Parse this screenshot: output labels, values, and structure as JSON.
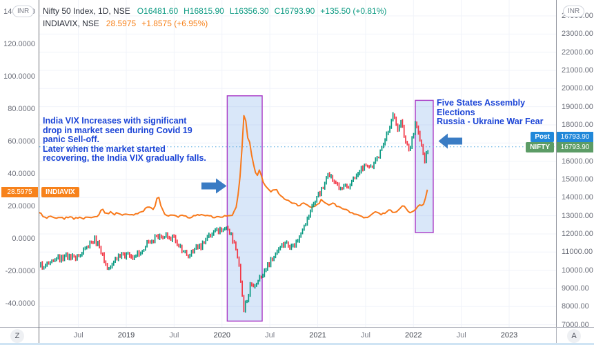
{
  "colors": {
    "nifty_up": "#089981",
    "nifty_down": "#f23645",
    "vix_line": "#f8791b",
    "vix_badge": "#f7821b",
    "grid": "#f0f3fa",
    "dotted_price_line": "#4da6e0",
    "region_fill": "#78aaeb",
    "region_border": "#a93ac6",
    "arrow": "#3a7cc4",
    "post_badge": "#2188d9",
    "nifty_badge": "#5c9c66",
    "annotation_text": "#1b44d6"
  },
  "legend": {
    "nifty": {
      "title": "Nifty 50 Index, 1D, NSE",
      "open": "O16481.60",
      "high": "H16815.90",
      "low": "L16356.30",
      "close": "C16793.90",
      "change": "+135.50 (+0.81%)"
    },
    "indiavix": {
      "title": "INDIAVIX, NSE",
      "value": "28.5975",
      "change": "+1.8575 (+6.95%)"
    }
  },
  "axes": {
    "left_currency_button": "INR",
    "right_currency_button": "INR",
    "left_ticks": [
      {
        "label": "140.0000",
        "value": 140
      },
      {
        "label": "120.0000",
        "value": 120
      },
      {
        "label": "100.0000",
        "value": 100
      },
      {
        "label": "80.0000",
        "value": 80
      },
      {
        "label": "60.0000",
        "value": 60
      },
      {
        "label": "40.0000",
        "value": 40
      },
      {
        "label": "20.0000",
        "value": 20
      },
      {
        "label": "0.0000",
        "value": 0
      },
      {
        "label": "-20.0000",
        "value": -20
      },
      {
        "label": "-40.0000",
        "value": -40
      }
    ],
    "right_ticks": [
      {
        "label": "24000.00",
        "value": 24000
      },
      {
        "label": "23000.00",
        "value": 23000
      },
      {
        "label": "22000.00",
        "value": 22000
      },
      {
        "label": "21000.00",
        "value": 21000
      },
      {
        "label": "20000.00",
        "value": 20000
      },
      {
        "label": "19000.00",
        "value": 19000
      },
      {
        "label": "18000.00",
        "value": 18000
      },
      {
        "label": "17000.00",
        "value": 17000
      },
      {
        "label": "16000.00",
        "value": 16000
      },
      {
        "label": "15000.00",
        "value": 15000
      },
      {
        "label": "14000.00",
        "value": 14000
      },
      {
        "label": "13000.00",
        "value": 13000
      },
      {
        "label": "12000.00",
        "value": 12000
      },
      {
        "label": "11000.00",
        "value": 11000
      },
      {
        "label": "10000.00",
        "value": 10000
      },
      {
        "label": "9000.00",
        "value": 9000
      },
      {
        "label": "8000.00",
        "value": 8000
      },
      {
        "label": "7000.00",
        "value": 7000
      }
    ],
    "time_ticks": [
      {
        "label": "Jul",
        "t": 2018.5,
        "major": false
      },
      {
        "label": "2019",
        "t": 2019,
        "major": true
      },
      {
        "label": "Jul",
        "t": 2019.5,
        "major": false
      },
      {
        "label": "2020",
        "t": 2020,
        "major": true
      },
      {
        "label": "Jul",
        "t": 2020.5,
        "major": false
      },
      {
        "label": "2021",
        "t": 2021,
        "major": true
      },
      {
        "label": "Jul",
        "t": 2021.5,
        "major": false
      },
      {
        "label": "2022",
        "t": 2022,
        "major": true
      },
      {
        "label": "Jul",
        "t": 2022.5,
        "major": false
      },
      {
        "label": "2023",
        "t": 2023,
        "major": true
      }
    ]
  },
  "price_labels": {
    "vix_axis_value": "28.5975",
    "vix_series_label": "INDIAVIX",
    "post_label": "Post",
    "post_value": "16793.90",
    "nifty_label": "NIFTY",
    "nifty_value": "16793.90"
  },
  "annotations": {
    "covid": [
      "India VIX Increases with significant",
      "drop in market seen during Covid 19",
      "panic Sell-off.",
      "Later when the market started",
      "recovering, the India VIX gradually falls."
    ],
    "elections": [
      "Five States Assembly Elections",
      "Russia - Ukraine War Fear"
    ]
  },
  "buttons": {
    "zoom_reset": "Z",
    "auto_scale": "A"
  },
  "chart_data": {
    "type": "mixed",
    "grid": true,
    "x_axis": {
      "unit": "year",
      "range": [
        2018.092,
        2023.49
      ]
    },
    "right_axis": {
      "label": "Nifty 50 Index (INR)",
      "range": [
        6871,
        24873
      ]
    },
    "left_axis": {
      "label": "India VIX",
      "range": [
        -54.55,
        147.45
      ]
    },
    "price_line": {
      "axis": "right",
      "value": 16793.9
    },
    "regions": [
      {
        "label": "Covid 19 panic sell-off",
        "t": [
          2020.055,
          2020.42
        ],
        "v": [
          7200,
          19600
        ]
      },
      {
        "label": "Five States Assembly Elections / Russia - Ukraine War Fear",
        "t": [
          2022.02,
          2022.207
        ],
        "v": [
          12070,
          19350
        ]
      }
    ],
    "series": [
      {
        "name": "Nifty 50 Index",
        "type": "candlestick",
        "axis": "right",
        "last": 16793.9,
        "points": [
          [
            2018.09,
            10350
          ],
          [
            2018.13,
            10150
          ],
          [
            2018.17,
            10450
          ],
          [
            2018.22,
            10600
          ],
          [
            2018.28,
            10720
          ],
          [
            2018.33,
            10620
          ],
          [
            2018.38,
            10780
          ],
          [
            2018.44,
            10700
          ],
          [
            2018.5,
            10750
          ],
          [
            2018.56,
            11050
          ],
          [
            2018.62,
            11400
          ],
          [
            2018.67,
            11700
          ],
          [
            2018.71,
            11350
          ],
          [
            2018.74,
            11000
          ],
          [
            2018.78,
            10300
          ],
          [
            2018.81,
            10050
          ],
          [
            2018.85,
            10350
          ],
          [
            2018.89,
            10600
          ],
          [
            2018.93,
            10700
          ],
          [
            2018.97,
            10850
          ],
          [
            2019.02,
            10800
          ],
          [
            2019.06,
            10700
          ],
          [
            2019.1,
            10850
          ],
          [
            2019.15,
            11000
          ],
          [
            2019.2,
            11350
          ],
          [
            2019.25,
            11650
          ],
          [
            2019.3,
            11750
          ],
          [
            2019.35,
            11850
          ],
          [
            2019.42,
            12000
          ],
          [
            2019.47,
            11800
          ],
          [
            2019.52,
            11650
          ],
          [
            2019.57,
            11150
          ],
          [
            2019.62,
            10950
          ],
          [
            2019.66,
            10800
          ],
          [
            2019.7,
            11100
          ],
          [
            2019.74,
            11350
          ],
          [
            2019.78,
            11250
          ],
          [
            2019.82,
            11600
          ],
          [
            2019.86,
            11900
          ],
          [
            2019.91,
            12050
          ],
          [
            2019.96,
            12150
          ],
          [
            2020.0,
            12200
          ],
          [
            2020.04,
            12300
          ],
          [
            2020.08,
            12100
          ],
          [
            2020.12,
            11550
          ],
          [
            2020.15,
            11000
          ],
          [
            2020.18,
            10200
          ],
          [
            2020.21,
            8800
          ],
          [
            2020.23,
            7650
          ],
          [
            2020.25,
            8600
          ],
          [
            2020.27,
            8300
          ],
          [
            2020.29,
            9100
          ],
          [
            2020.32,
            9350
          ],
          [
            2020.34,
            9050
          ],
          [
            2020.37,
            9250
          ],
          [
            2020.4,
            9550
          ],
          [
            2020.44,
            9900
          ],
          [
            2020.48,
            10250
          ],
          [
            2020.52,
            10550
          ],
          [
            2020.56,
            10850
          ],
          [
            2020.6,
            11200
          ],
          [
            2020.64,
            11350
          ],
          [
            2020.68,
            11500
          ],
          [
            2020.71,
            11150
          ],
          [
            2020.75,
            11300
          ],
          [
            2020.79,
            11650
          ],
          [
            2020.83,
            11950
          ],
          [
            2020.87,
            12500
          ],
          [
            2020.91,
            13100
          ],
          [
            2020.95,
            13600
          ],
          [
            2020.98,
            13900
          ],
          [
            2021.02,
            14250
          ],
          [
            2021.06,
            14650
          ],
          [
            2021.1,
            15100
          ],
          [
            2021.13,
            15250
          ],
          [
            2021.17,
            14850
          ],
          [
            2021.21,
            14650
          ],
          [
            2021.25,
            14500
          ],
          [
            2021.29,
            14800
          ],
          [
            2021.33,
            14650
          ],
          [
            2021.38,
            15050
          ],
          [
            2021.42,
            15350
          ],
          [
            2021.46,
            15650
          ],
          [
            2021.5,
            15750
          ],
          [
            2021.54,
            15850
          ],
          [
            2021.58,
            15750
          ],
          [
            2021.62,
            16100
          ],
          [
            2021.67,
            16650
          ],
          [
            2021.71,
            17300
          ],
          [
            2021.75,
            17900
          ],
          [
            2021.78,
            18550
          ],
          [
            2021.81,
            18150
          ],
          [
            2021.84,
            17800
          ],
          [
            2021.87,
            18100
          ],
          [
            2021.9,
            17500
          ],
          [
            2021.93,
            16950
          ],
          [
            2021.96,
            16500
          ],
          [
            2021.98,
            17100
          ],
          [
            2022.0,
            17400
          ],
          [
            2022.02,
            18100
          ],
          [
            2022.04,
            17850
          ],
          [
            2022.06,
            17350
          ],
          [
            2022.08,
            17000
          ],
          [
            2022.1,
            16450
          ],
          [
            2022.12,
            15950
          ],
          [
            2022.14,
            16550
          ],
          [
            2022.16,
            16793.9
          ]
        ]
      },
      {
        "name": "India VIX",
        "type": "line",
        "axis": "left",
        "last": 28.5975,
        "points": [
          [
            2018.09,
            16.5
          ],
          [
            2018.13,
            14
          ],
          [
            2018.17,
            13
          ],
          [
            2018.21,
            14.5
          ],
          [
            2018.26,
            13
          ],
          [
            2018.3,
            13.5
          ],
          [
            2018.35,
            12.5
          ],
          [
            2018.4,
            13.5
          ],
          [
            2018.45,
            12.5
          ],
          [
            2018.5,
            13
          ],
          [
            2018.55,
            12.5
          ],
          [
            2018.6,
            13.5
          ],
          [
            2018.65,
            12.8
          ],
          [
            2018.7,
            13.5
          ],
          [
            2018.75,
            18.5
          ],
          [
            2018.79,
            15
          ],
          [
            2018.83,
            16.5
          ],
          [
            2018.87,
            15
          ],
          [
            2018.91,
            16
          ],
          [
            2018.95,
            14.5
          ],
          [
            2019.0,
            15.5
          ],
          [
            2019.05,
            14.5
          ],
          [
            2019.1,
            15
          ],
          [
            2019.15,
            16
          ],
          [
            2019.2,
            18.5
          ],
          [
            2019.24,
            19.5
          ],
          [
            2019.28,
            18.5
          ],
          [
            2019.3,
            20
          ],
          [
            2019.33,
            27.5
          ],
          [
            2019.36,
            21
          ],
          [
            2019.4,
            15.5
          ],
          [
            2019.45,
            14
          ],
          [
            2019.5,
            15
          ],
          [
            2019.55,
            13.5
          ],
          [
            2019.6,
            14.5
          ],
          [
            2019.65,
            13
          ],
          [
            2019.7,
            14
          ],
          [
            2019.75,
            15.5
          ],
          [
            2019.8,
            14
          ],
          [
            2019.85,
            15
          ],
          [
            2019.89,
            13.5
          ],
          [
            2019.93,
            13
          ],
          [
            2019.97,
            14
          ],
          [
            2020.01,
            13.5
          ],
          [
            2020.05,
            14.5
          ],
          [
            2020.09,
            14
          ],
          [
            2020.12,
            15.5
          ],
          [
            2020.15,
            20
          ],
          [
            2020.18,
            31
          ],
          [
            2020.2,
            48
          ],
          [
            2020.22,
            65
          ],
          [
            2020.235,
            83
          ],
          [
            2020.25,
            72
          ],
          [
            2020.265,
            62
          ],
          [
            2020.28,
            64
          ],
          [
            2020.3,
            55
          ],
          [
            2020.32,
            48
          ],
          [
            2020.34,
            43
          ],
          [
            2020.36,
            38
          ],
          [
            2020.38,
            41
          ],
          [
            2020.4,
            43
          ],
          [
            2020.42,
            36
          ],
          [
            2020.45,
            33
          ],
          [
            2020.48,
            30.5
          ],
          [
            2020.52,
            29
          ],
          [
            2020.56,
            31
          ],
          [
            2020.6,
            27
          ],
          [
            2020.65,
            25
          ],
          [
            2020.7,
            23.5
          ],
          [
            2020.75,
            22
          ],
          [
            2020.8,
            20.5
          ],
          [
            2020.85,
            22
          ],
          [
            2020.9,
            20
          ],
          [
            2020.95,
            19.5
          ],
          [
            2021.0,
            21
          ],
          [
            2021.04,
            24
          ],
          [
            2021.08,
            22
          ],
          [
            2021.12,
            20.5
          ],
          [
            2021.16,
            22
          ],
          [
            2021.2,
            20
          ],
          [
            2021.25,
            19
          ],
          [
            2021.3,
            17.5
          ],
          [
            2021.35,
            16
          ],
          [
            2021.4,
            15
          ],
          [
            2021.45,
            13.5
          ],
          [
            2021.5,
            13
          ],
          [
            2021.55,
            14
          ],
          [
            2021.6,
            17
          ],
          [
            2021.65,
            15
          ],
          [
            2021.7,
            16
          ],
          [
            2021.75,
            17.5
          ],
          [
            2021.8,
            16
          ],
          [
            2021.85,
            18
          ],
          [
            2021.9,
            21
          ],
          [
            2021.93,
            18
          ],
          [
            2021.96,
            16
          ],
          [
            2022.0,
            17.5
          ],
          [
            2022.03,
            19
          ],
          [
            2022.06,
            21
          ],
          [
            2022.09,
            20
          ],
          [
            2022.11,
            22
          ],
          [
            2022.13,
            26
          ],
          [
            2022.15,
            31.5
          ],
          [
            2022.16,
            28.5975
          ]
        ]
      }
    ]
  }
}
